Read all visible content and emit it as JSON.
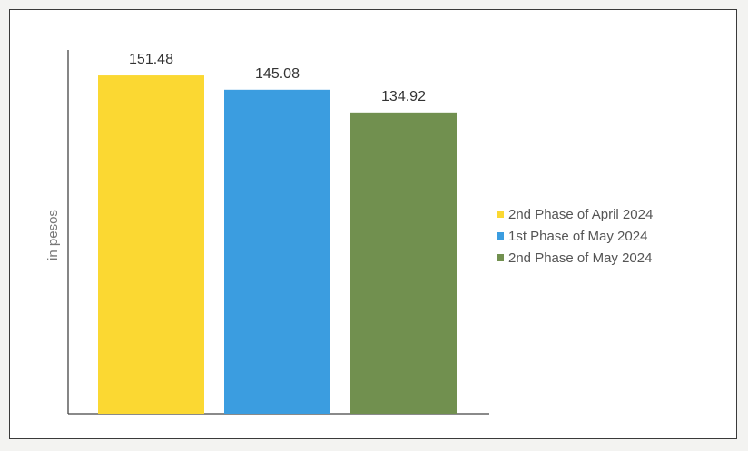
{
  "chart_data": {
    "type": "bar",
    "title": "",
    "xlabel": "",
    "ylabel": "in pesos",
    "ylim": [
      0,
      160
    ],
    "grid": false,
    "legend_position": "right",
    "series": [
      {
        "name": "2nd Phase of April 2024",
        "value": 151.48,
        "label": "151.48",
        "color": "#fbd832"
      },
      {
        "name": "1st Phase of May 2024",
        "value": 145.08,
        "label": "145.08",
        "color": "#3b9de0"
      },
      {
        "name": "2nd Phase of May 2024",
        "value": 134.92,
        "label": "134.92",
        "color": "#71904f"
      }
    ]
  }
}
